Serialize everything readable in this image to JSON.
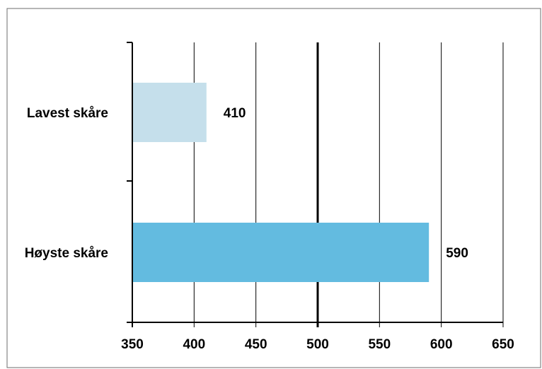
{
  "chart_data": {
    "type": "bar",
    "orientation": "horizontal",
    "categories": [
      "Lavest skåre",
      "Høyste skåre"
    ],
    "values": [
      410,
      590
    ],
    "data_labels": [
      "410",
      "590"
    ],
    "bar_colors": [
      "#c5dfeb",
      "#63bbe0"
    ],
    "xlim": [
      350,
      650
    ],
    "x_ticks": [
      350,
      400,
      450,
      500,
      550,
      600,
      650
    ],
    "x_tick_labels": [
      "350",
      "400",
      "450",
      "500",
      "550",
      "600",
      "650"
    ],
    "reference_line": 500,
    "grid": "vertical",
    "legend": "none",
    "title": "",
    "xlabel": "",
    "ylabel": ""
  }
}
